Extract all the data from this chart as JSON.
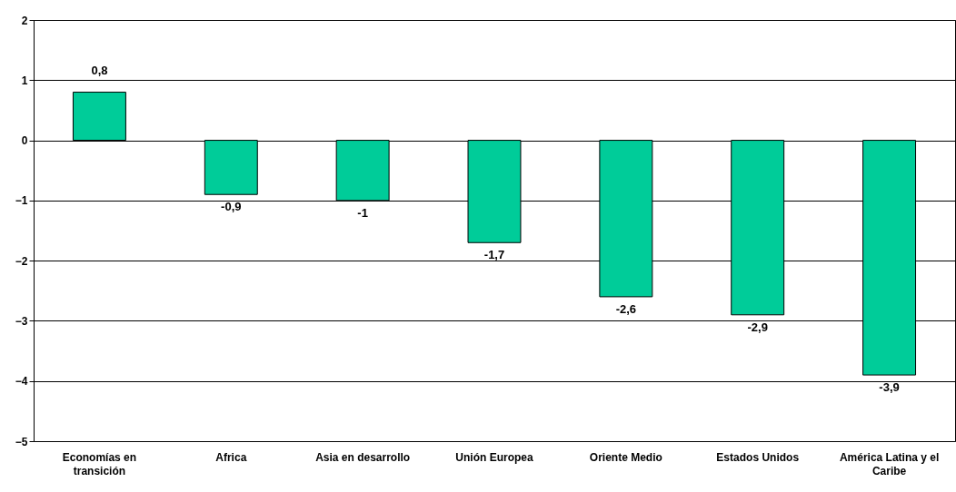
{
  "chart_data": {
    "type": "bar",
    "categories": [
      "Economías en transición",
      "Africa",
      "Asia en desarrollo",
      "Unión Europea",
      "Oriente Medio",
      "Estados Unidos",
      "América Latina y el Caribe"
    ],
    "values": [
      0.8,
      -0.9,
      -1,
      -1.7,
      -2.6,
      -2.9,
      -3.9
    ],
    "value_labels": [
      "0,8",
      "-0,9",
      "-1",
      "-1,7",
      "-2,6",
      "-2,9",
      "-3,9"
    ],
    "color": "#00cc99",
    "ylim": [
      -5,
      2
    ],
    "yticks": [
      -5,
      -4,
      -3,
      -2,
      -1,
      0,
      1,
      2
    ],
    "grid": "y"
  }
}
